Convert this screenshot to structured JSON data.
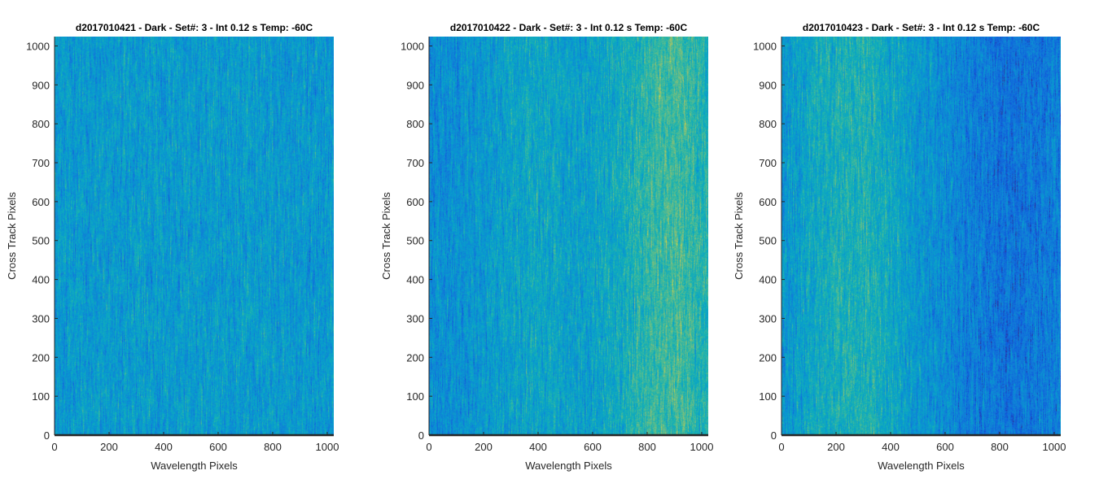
{
  "chart_data": [
    {
      "type": "heatmap",
      "title": "d2017010421 - Dark - Set#: 3 - Int 0.12 s Temp: -60C",
      "xlabel": "Wavelength Pixels",
      "ylabel": "Cross Track Pixels",
      "xlim": [
        0,
        1024
      ],
      "ylim": [
        0,
        1024
      ],
      "xticks": [
        0,
        200,
        400,
        600,
        800,
        1000
      ],
      "yticks": [
        0,
        100,
        200,
        300,
        400,
        500,
        600,
        700,
        800,
        900,
        1000
      ],
      "colormap": "parula",
      "column_mean_profile": [
        0.45,
        0.45,
        0.45,
        0.46,
        0.45,
        0.46,
        0.45,
        0.45,
        0.44,
        0.44,
        0.44
      ],
      "noise": "high"
    },
    {
      "type": "heatmap",
      "title": "d2017010422 - Dark - Set#: 3 - Int 0.12 s Temp: -60C",
      "xlabel": "Wavelength Pixels",
      "ylabel": "Cross Track Pixels",
      "xlim": [
        0,
        1024
      ],
      "ylim": [
        0,
        1024
      ],
      "xticks": [
        0,
        200,
        400,
        600,
        800,
        1000
      ],
      "yticks": [
        0,
        100,
        200,
        300,
        400,
        500,
        600,
        700,
        800,
        900,
        1000
      ],
      "colormap": "parula",
      "column_mean_profile": [
        0.38,
        0.4,
        0.44,
        0.5,
        0.52,
        0.48,
        0.5,
        0.56,
        0.66,
        0.7,
        0.58
      ],
      "noise": "high"
    },
    {
      "type": "heatmap",
      "title": "d2017010423 - Dark - Set#: 3 - Int 0.12 s Temp: -60C",
      "xlabel": "Wavelength Pixels",
      "ylabel": "Cross Track Pixels",
      "xlim": [
        0,
        1024
      ],
      "ylim": [
        0,
        1024
      ],
      "xticks": [
        0,
        200,
        400,
        600,
        800,
        1000
      ],
      "yticks": [
        0,
        100,
        200,
        300,
        400,
        500,
        600,
        700,
        800,
        900,
        1000
      ],
      "colormap": "parula",
      "column_mean_profile": [
        0.42,
        0.52,
        0.58,
        0.6,
        0.52,
        0.42,
        0.36,
        0.3,
        0.25,
        0.28,
        0.32
      ],
      "noise": "high"
    }
  ]
}
